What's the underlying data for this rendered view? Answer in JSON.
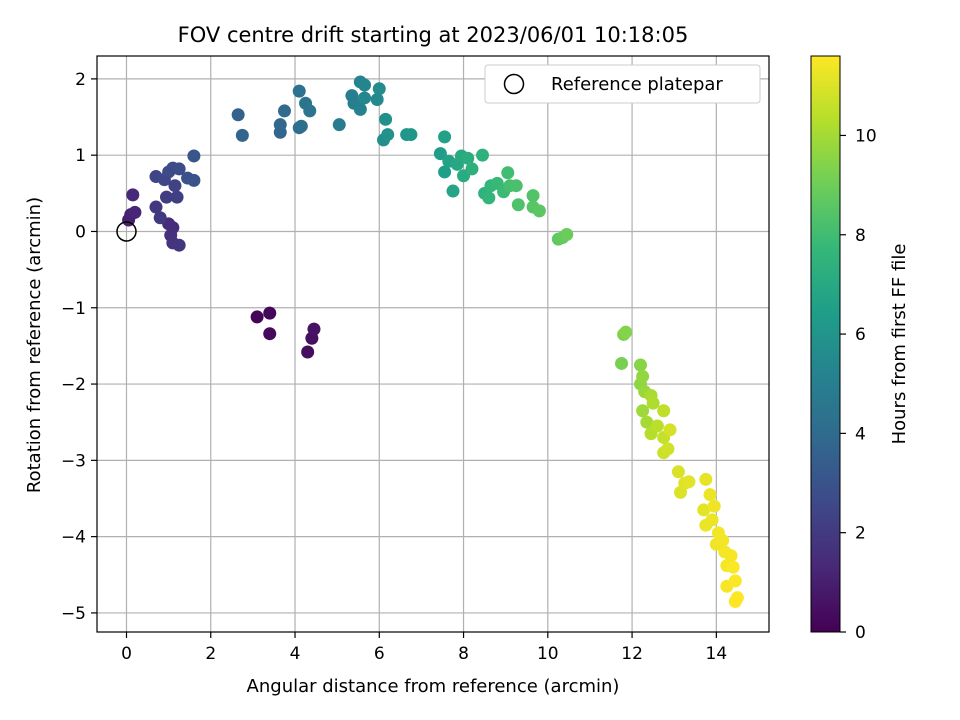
{
  "chart_data": {
    "type": "scatter",
    "title": "FOV centre drift starting at 2023/06/01 10:18:05",
    "xlabel": "Angular distance from reference (arcmin)",
    "ylabel": "Rotation from reference (arcmin)",
    "xlim": [
      -0.7,
      15.25
    ],
    "ylim": [
      -5.25,
      2.3
    ],
    "xticks": [
      0,
      2,
      4,
      6,
      8,
      10,
      12,
      14
    ],
    "yticks": [
      -5,
      -4,
      -3,
      -2,
      -1,
      0,
      1,
      2
    ],
    "grid": true,
    "colorbar": {
      "label": "Hours from first FF file",
      "range": [
        0,
        11.6
      ],
      "ticks": [
        0,
        2,
        4,
        6,
        8,
        10
      ],
      "colormap": [
        "#440154",
        "#482878",
        "#3e4989",
        "#31688e",
        "#26828e",
        "#1f9e89",
        "#35b779",
        "#6ece58",
        "#b5de2b",
        "#fde725"
      ]
    },
    "legend": {
      "position": "top-right",
      "label": "Reference platepar"
    },
    "reference_point": {
      "x": 0,
      "y": 0
    },
    "series": [
      {
        "points": [
          [
            3.1,
            -1.12,
            0.1
          ],
          [
            3.4,
            -1.07,
            0.2
          ],
          [
            3.4,
            -1.34,
            0.3
          ],
          [
            4.3,
            -1.58,
            0.4
          ],
          [
            4.4,
            -1.4,
            0.5
          ],
          [
            4.45,
            -1.28,
            0.6
          ],
          [
            0.05,
            0.15,
            1.0
          ],
          [
            0.1,
            0.22,
            1.1
          ],
          [
            0.2,
            0.25,
            1.2
          ],
          [
            0.15,
            0.48,
            1.3
          ],
          [
            1.0,
            0.1,
            1.4
          ],
          [
            1.1,
            0.05,
            1.5
          ],
          [
            1.05,
            -0.05,
            1.6
          ],
          [
            1.1,
            -0.15,
            1.7
          ],
          [
            1.25,
            -0.18,
            1.8
          ],
          [
            0.7,
            0.32,
            1.9
          ],
          [
            0.8,
            0.18,
            2.0
          ],
          [
            0.95,
            0.45,
            2.1
          ],
          [
            1.2,
            0.45,
            2.2
          ],
          [
            1.15,
            0.6,
            2.3
          ],
          [
            0.7,
            0.72,
            2.4
          ],
          [
            0.9,
            0.68,
            2.5
          ],
          [
            1.0,
            0.78,
            2.6
          ],
          [
            1.1,
            0.83,
            2.7
          ],
          [
            1.25,
            0.82,
            2.8
          ],
          [
            1.45,
            0.7,
            2.9
          ],
          [
            1.6,
            0.67,
            3.0
          ],
          [
            1.6,
            0.99,
            3.1
          ],
          [
            2.65,
            1.53,
            3.6
          ],
          [
            2.75,
            1.26,
            3.7
          ],
          [
            3.65,
            1.3,
            3.8
          ],
          [
            3.65,
            1.4,
            3.9
          ],
          [
            3.75,
            1.58,
            4.0
          ],
          [
            4.1,
            1.36,
            4.1
          ],
          [
            4.15,
            1.38,
            4.2
          ],
          [
            4.1,
            1.84,
            4.3
          ],
          [
            4.25,
            1.68,
            4.4
          ],
          [
            4.35,
            1.58,
            4.5
          ],
          [
            5.05,
            1.4,
            4.8
          ],
          [
            5.35,
            1.78,
            4.9
          ],
          [
            5.4,
            1.68,
            5.0
          ],
          [
            5.55,
            1.6,
            5.1
          ],
          [
            5.55,
            1.96,
            5.2
          ],
          [
            5.65,
            1.92,
            5.3
          ],
          [
            5.65,
            1.75,
            5.4
          ],
          [
            5.95,
            1.73,
            5.5
          ],
          [
            6.0,
            1.87,
            5.6
          ],
          [
            6.1,
            1.2,
            5.7
          ],
          [
            6.15,
            1.47,
            5.8
          ],
          [
            6.2,
            1.27,
            5.9
          ],
          [
            6.65,
            1.27,
            6.0
          ],
          [
            6.75,
            1.27,
            6.1
          ],
          [
            7.45,
            1.02,
            6.4
          ],
          [
            7.55,
            0.78,
            6.5
          ],
          [
            7.55,
            1.24,
            6.6
          ],
          [
            7.65,
            0.92,
            6.7
          ],
          [
            7.75,
            0.53,
            6.8
          ],
          [
            7.85,
            0.88,
            6.9
          ],
          [
            7.95,
            0.99,
            7.0
          ],
          [
            8.0,
            0.73,
            7.1
          ],
          [
            8.1,
            0.96,
            7.2
          ],
          [
            8.2,
            0.82,
            7.3
          ],
          [
            8.45,
            1.0,
            7.4
          ],
          [
            8.5,
            0.5,
            7.5
          ],
          [
            8.6,
            0.44,
            7.6
          ],
          [
            8.65,
            0.6,
            7.7
          ],
          [
            8.8,
            0.63,
            7.8
          ],
          [
            8.95,
            0.52,
            7.9
          ],
          [
            9.05,
            0.77,
            8.0
          ],
          [
            9.1,
            0.6,
            8.1
          ],
          [
            9.25,
            0.6,
            8.2
          ],
          [
            9.3,
            0.35,
            8.3
          ],
          [
            9.65,
            0.47,
            8.4
          ],
          [
            9.65,
            0.32,
            8.5
          ],
          [
            9.8,
            0.27,
            8.6
          ],
          [
            10.25,
            -0.1,
            8.7
          ],
          [
            10.35,
            -0.08,
            8.8
          ],
          [
            10.45,
            -0.04,
            8.9
          ],
          [
            11.75,
            -1.73,
            9.2
          ],
          [
            11.8,
            -1.35,
            9.3
          ],
          [
            11.85,
            -1.32,
            9.4
          ],
          [
            12.2,
            -1.75,
            9.5
          ],
          [
            12.2,
            -2.0,
            9.6
          ],
          [
            12.25,
            -1.9,
            9.7
          ],
          [
            12.3,
            -2.1,
            9.8
          ],
          [
            12.25,
            -2.35,
            9.9
          ],
          [
            12.35,
            -2.5,
            10.0
          ],
          [
            12.45,
            -2.15,
            10.1
          ],
          [
            12.5,
            -2.25,
            10.2
          ],
          [
            12.45,
            -2.65,
            10.3
          ],
          [
            12.6,
            -2.55,
            10.4
          ],
          [
            12.75,
            -2.35,
            10.5
          ],
          [
            12.75,
            -2.7,
            10.6
          ],
          [
            12.75,
            -2.9,
            10.7
          ],
          [
            12.85,
            -2.85,
            10.8
          ],
          [
            12.9,
            -2.6,
            10.9
          ],
          [
            13.1,
            -3.15,
            10.95
          ],
          [
            13.15,
            -3.42,
            11.0
          ],
          [
            13.25,
            -3.3,
            11.05
          ],
          [
            13.35,
            -3.28,
            11.1
          ],
          [
            13.7,
            -3.65,
            11.15
          ],
          [
            13.75,
            -3.25,
            11.2
          ],
          [
            13.75,
            -3.85,
            11.25
          ],
          [
            13.85,
            -3.45,
            11.3
          ],
          [
            13.9,
            -3.78,
            11.3
          ],
          [
            13.95,
            -3.6,
            11.35
          ],
          [
            14.0,
            -4.1,
            11.35
          ],
          [
            14.05,
            -3.95,
            11.4
          ],
          [
            14.15,
            -4.05,
            11.4
          ],
          [
            14.2,
            -4.2,
            11.45
          ],
          [
            14.25,
            -4.38,
            11.45
          ],
          [
            14.25,
            -4.65,
            11.5
          ],
          [
            14.35,
            -4.25,
            11.5
          ],
          [
            14.4,
            -4.4,
            11.55
          ],
          [
            14.45,
            -4.58,
            11.55
          ],
          [
            14.45,
            -4.85,
            11.6
          ],
          [
            14.5,
            -4.8,
            11.6
          ]
        ]
      }
    ]
  }
}
